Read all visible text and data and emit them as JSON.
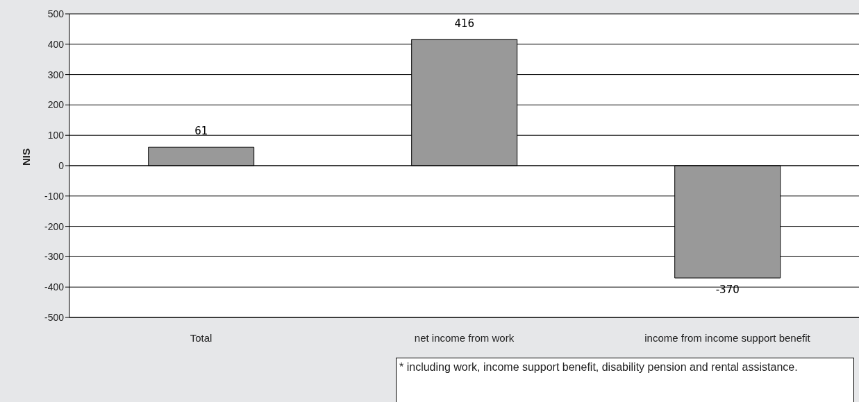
{
  "chart_data": {
    "type": "bar",
    "categories": [
      "Total",
      "net income from work",
      "income from income support benefit"
    ],
    "values": [
      61,
      416,
      -370
    ],
    "color": "#999999",
    "ylabel": "NIS",
    "ylim": [
      -500,
      500
    ],
    "yticks": [
      -500,
      -400,
      -300,
      -200,
      -100,
      0,
      100,
      200,
      300,
      400,
      500
    ],
    "grid": "y",
    "data_labels": true,
    "annotations": [
      "* including work, income support  benefit, disability pension and rental assistance."
    ]
  }
}
